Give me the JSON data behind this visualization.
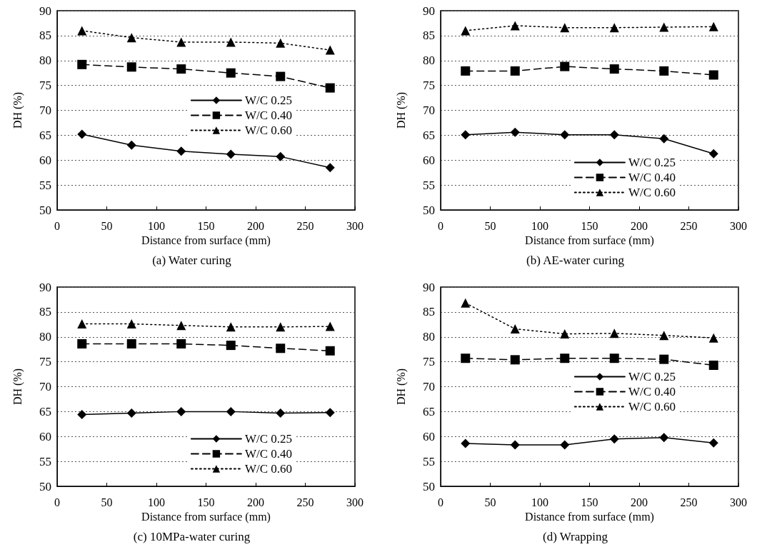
{
  "chart_data": [
    {
      "type": "line",
      "title": "(a) Water curing",
      "xlabel": "Distance from surface (mm)",
      "ylabel": "DH (%)",
      "x": [
        25,
        75,
        125,
        175,
        225,
        275
      ],
      "xlim": [
        0,
        300
      ],
      "xticks": [
        0,
        50,
        100,
        150,
        200,
        250,
        300
      ],
      "ylim": [
        50,
        90
      ],
      "yticks": [
        50,
        55,
        60,
        65,
        70,
        75,
        80,
        85,
        90
      ],
      "grid": "y",
      "legend": "right",
      "series": [
        {
          "name": "W/C 0.25",
          "color": "#000000",
          "marker": "diamond",
          "line_style": "solid",
          "values": [
            65.2,
            63,
            61.8,
            61.2,
            60.7,
            58.5
          ]
        },
        {
          "name": "W/C 0.40",
          "color": "#000000",
          "marker": "square",
          "line_style": "dashed",
          "values": [
            79.2,
            78.7,
            78.3,
            77.5,
            76.8,
            74.5
          ]
        },
        {
          "name": "W/C 0.60",
          "color": "#000000",
          "marker": "triangle",
          "line_style": "dotted",
          "values": [
            86,
            84.6,
            83.7,
            83.7,
            83.5,
            82.1
          ]
        }
      ]
    },
    {
      "type": "line",
      "title": "(b) AE-water curing",
      "xlabel": "Distance from surface (mm)",
      "ylabel": "DH (%)",
      "x": [
        25,
        75,
        125,
        175,
        225,
        275
      ],
      "xlim": [
        0,
        300
      ],
      "xticks": [
        0,
        50,
        100,
        150,
        200,
        250,
        300
      ],
      "ylim": [
        50,
        90
      ],
      "yticks": [
        50,
        55,
        60,
        65,
        70,
        75,
        80,
        85,
        90
      ],
      "grid": "y",
      "legend": "bottom right",
      "series": [
        {
          "name": "W/C 0.25",
          "color": "#000000",
          "marker": "diamond",
          "line_style": "solid",
          "values": [
            65.1,
            65.6,
            65.1,
            65.1,
            64.3,
            61.3
          ]
        },
        {
          "name": "W/C 0.40",
          "color": "#000000",
          "marker": "square",
          "line_style": "dashed",
          "values": [
            77.9,
            77.9,
            78.8,
            78.3,
            77.9,
            77.1
          ]
        },
        {
          "name": "W/C 0.60",
          "color": "#000000",
          "marker": "triangle",
          "line_style": "dotted",
          "values": [
            86,
            87,
            86.6,
            86.6,
            86.7,
            86.8
          ]
        }
      ]
    },
    {
      "type": "line",
      "title": "(c) 10MPa-water curing",
      "xlabel": "Distance from surface (mm)",
      "ylabel": "DH (%)",
      "x": [
        25,
        75,
        125,
        175,
        225,
        275
      ],
      "xlim": [
        0,
        300
      ],
      "xticks": [
        0,
        50,
        100,
        150,
        200,
        250,
        300
      ],
      "ylim": [
        50,
        90
      ],
      "yticks": [
        50,
        55,
        60,
        65,
        70,
        75,
        80,
        85,
        90
      ],
      "grid": "y",
      "legend": "bottom right",
      "series": [
        {
          "name": "W/C 0.25",
          "color": "#000000",
          "marker": "diamond",
          "line_style": "solid",
          "values": [
            64.4,
            64.7,
            65,
            65,
            64.7,
            64.8
          ]
        },
        {
          "name": "W/C 0.40",
          "color": "#000000",
          "marker": "square",
          "line_style": "dashed",
          "values": [
            78.6,
            78.6,
            78.6,
            78.3,
            77.7,
            77.2
          ]
        },
        {
          "name": "W/C 0.60",
          "color": "#000000",
          "marker": "triangle",
          "line_style": "dotted",
          "values": [
            82.6,
            82.6,
            82.3,
            82,
            82,
            82.1
          ]
        }
      ]
    },
    {
      "type": "line",
      "title": "(d) Wrapping",
      "xlabel": "Distance from surface (mm)",
      "ylabel": "DH (%)",
      "x": [
        25,
        75,
        125,
        175,
        225,
        275
      ],
      "xlim": [
        0,
        300
      ],
      "xticks": [
        0,
        50,
        100,
        150,
        200,
        250,
        300
      ],
      "ylim": [
        50,
        90
      ],
      "yticks": [
        50,
        55,
        60,
        65,
        70,
        75,
        80,
        85,
        90
      ],
      "grid": "y",
      "legend": "right",
      "series": [
        {
          "name": "W/C 0.25",
          "color": "#000000",
          "marker": "diamond",
          "line_style": "solid",
          "values": [
            58.6,
            58.3,
            58.3,
            59.5,
            59.8,
            58.7
          ]
        },
        {
          "name": "W/C 0.40",
          "color": "#000000",
          "marker": "square",
          "line_style": "dashed",
          "values": [
            75.7,
            75.4,
            75.7,
            75.7,
            75.5,
            74.3
          ]
        },
        {
          "name": "W/C 0.60",
          "color": "#000000",
          "marker": "triangle",
          "line_style": "dotted",
          "values": [
            86.8,
            81.6,
            80.6,
            80.7,
            80.3,
            79.8
          ]
        }
      ]
    }
  ]
}
